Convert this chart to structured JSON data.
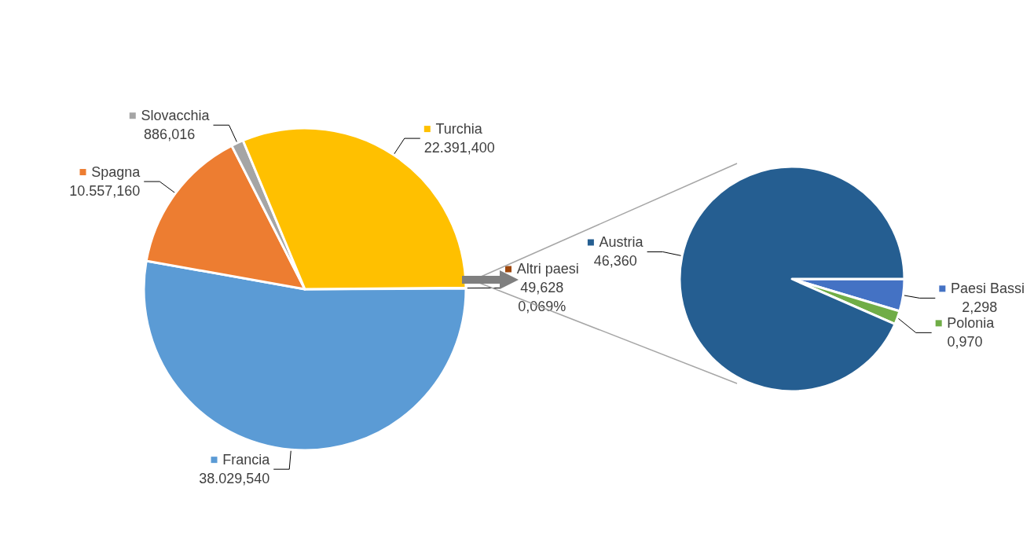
{
  "chart_data": [
    {
      "type": "pie",
      "categories": [
        "Altri paesi",
        "Francia",
        "Spagna",
        "Slovacchia",
        "Turchia"
      ],
      "values": [
        49.628,
        38029.54,
        10557.16,
        886.016,
        22391.4
      ],
      "colors": [
        "#9e480e",
        "#5b9bd5",
        "#ed7d31",
        "#a5a5a5",
        "#ffc000"
      ],
      "value_labels": [
        "49,628\n0,069%",
        "38.029,540",
        "10.557,160",
        "886,016",
        "22.391,400"
      ],
      "legend": "top right"
    },
    {
      "type": "pie",
      "categories": [
        "Paesi Bassi",
        "Polonia",
        "Austria"
      ],
      "values": [
        2.298,
        0.97,
        46.36
      ],
      "colors": [
        "#4472c4",
        "#70ad47",
        "#255e91"
      ],
      "value_labels": [
        "2,298",
        "0,970",
        "46,360"
      ],
      "legend": "right"
    }
  ]
}
